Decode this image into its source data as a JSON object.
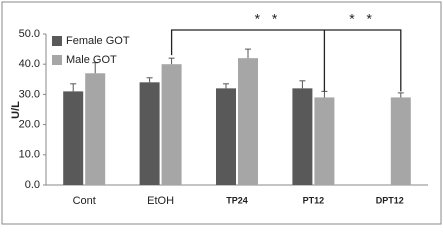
{
  "chart_data": {
    "type": "bar",
    "ylabel": "U/L",
    "categories": [
      "Cont",
      "EtOH",
      "TP24",
      "PT12",
      "DPT12"
    ],
    "series": [
      {
        "name": "Female GOT",
        "color": "#595959",
        "values": [
          31,
          34,
          32,
          32,
          null
        ],
        "errors": [
          2.5,
          1.5,
          1.5,
          2.5,
          null
        ]
      },
      {
        "name": "Male GOT",
        "color": "#a6a6a6",
        "values": [
          37,
          40,
          42,
          29,
          29
        ],
        "errors": [
          3.5,
          2,
          3,
          2,
          1.5
        ]
      }
    ],
    "ylim": [
      0,
      50
    ],
    "yticks": [
      {
        "value": 0,
        "label": "0.0"
      },
      {
        "value": 10,
        "label": "10.0"
      },
      {
        "value": 20,
        "label": "20.0"
      },
      {
        "value": 30,
        "label": "30.0"
      },
      {
        "value": 40,
        "label": "40.0"
      },
      {
        "value": 50,
        "label": "50.0"
      }
    ],
    "annotations": [
      "* *",
      "* *"
    ],
    "grid": false,
    "legend": "upper left"
  }
}
